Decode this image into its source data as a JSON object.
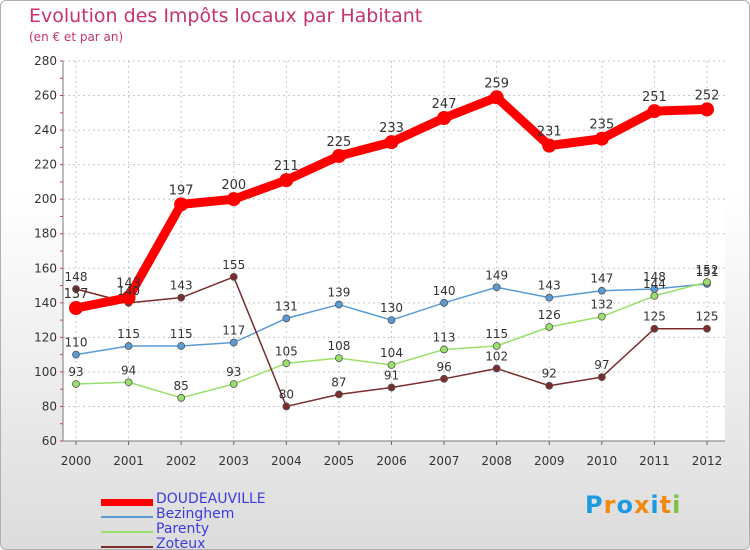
{
  "chart_data": {
    "type": "line",
    "title": "Evolution des Impôts locaux par Habitant",
    "subtitle": "(en € et par an)",
    "xlabel": "",
    "ylabel": "",
    "x": [
      "2000",
      "2001",
      "2002",
      "2003",
      "2004",
      "2005",
      "2006",
      "2007",
      "2008",
      "2009",
      "2010",
      "2011",
      "2012"
    ],
    "ylim": [
      60,
      280
    ],
    "yticks": [
      60,
      80,
      100,
      120,
      140,
      160,
      180,
      200,
      220,
      240,
      260,
      280
    ],
    "grid": true,
    "legend_position": "bottom-left",
    "series": [
      {
        "name": "DOUDEAUVILLE",
        "color": "#ff0000",
        "values": [
          137,
          143,
          197,
          200,
          211,
          225,
          233,
          247,
          259,
          231,
          235,
          251,
          252
        ]
      },
      {
        "name": "Bezinghem",
        "color": "#5a9bd5",
        "values": [
          110,
          115,
          115,
          117,
          131,
          139,
          130,
          140,
          149,
          143,
          147,
          148,
          151
        ]
      },
      {
        "name": "Parenty",
        "color": "#99e06a",
        "values": [
          93,
          94,
          85,
          93,
          105,
          108,
          104,
          113,
          115,
          126,
          132,
          144,
          152
        ]
      },
      {
        "name": "Zoteux",
        "color": "#7b2c2c",
        "values": [
          148,
          140,
          143,
          155,
          80,
          87,
          91,
          96,
          102,
          92,
          97,
          125,
          125
        ]
      }
    ]
  },
  "brand": {
    "text": "Proxiti",
    "colors": [
      "#1e9be0",
      "#f08a12",
      "#1e9be0",
      "#f08a12",
      "#1e9be0",
      "#f08a12",
      "#7cc242"
    ]
  }
}
